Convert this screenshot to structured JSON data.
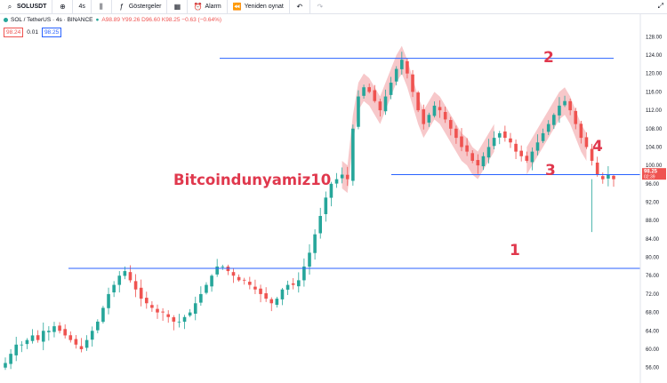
{
  "toolbar": {
    "symbol": "SOLUSDT",
    "interval": "4s",
    "indicators_label": "Göstergeler",
    "alarm_label": "Alarm",
    "replay_label": "Yeniden oynat"
  },
  "legend": {
    "title": "SOL / TetherUS · 4s · BINANCE",
    "ohlc": "A98.89  Y99.26  D96.60  K98.25  −0.63 (−0.64%)",
    "bid": "98.24",
    "spread": "0.01",
    "ask": "98.25"
  },
  "chart_data": {
    "type": "candlestick",
    "currency": "USDT",
    "ylim": [
      52,
      132
    ],
    "y_ticks": [
      56,
      60,
      64,
      68,
      72,
      76,
      80,
      84,
      88,
      92,
      96,
      100,
      104,
      108,
      112,
      116,
      120,
      124,
      128
    ],
    "last_price": "98.25",
    "last_price_countdown": "02:39",
    "close_path": [
      57,
      59,
      61,
      61,
      62,
      63,
      62,
      64,
      64,
      65,
      64,
      63,
      62,
      61,
      60,
      62,
      64,
      66,
      69,
      72,
      74,
      76,
      77,
      75,
      73,
      71,
      70,
      69,
      68,
      68,
      67,
      66,
      66,
      67,
      68,
      70,
      72,
      74,
      76,
      78,
      78,
      77,
      76,
      75,
      75,
      74,
      73,
      72,
      71,
      70,
      71,
      73,
      74,
      74,
      75,
      78,
      81,
      85,
      89,
      93,
      96,
      97,
      98,
      97,
      108,
      115,
      117,
      116,
      114,
      112,
      115,
      118,
      121,
      123,
      120,
      116,
      112,
      109,
      111,
      113,
      112,
      110,
      108,
      106,
      104,
      103,
      101,
      100,
      102,
      104,
      106,
      107,
      106,
      105,
      103,
      102,
      101,
      103,
      105,
      107,
      109,
      111,
      113,
      114,
      112,
      109,
      106,
      104,
      101,
      98,
      97,
      98,
      97
    ],
    "horizontal_lines": [
      {
        "price": 123.3,
        "label": "2"
      },
      {
        "price": 98.0,
        "label": "3"
      },
      {
        "price": 77.6,
        "label": "1"
      }
    ],
    "annotations": [
      "1",
      "2",
      "3",
      "4"
    ],
    "watermark_text": "Bitcoindunyamiz10",
    "colors": {
      "up": "#26a69a",
      "down": "#ef5350",
      "line": "#2962ff",
      "highlight": "#f4b6b8",
      "annotation": "#e0384d"
    }
  }
}
